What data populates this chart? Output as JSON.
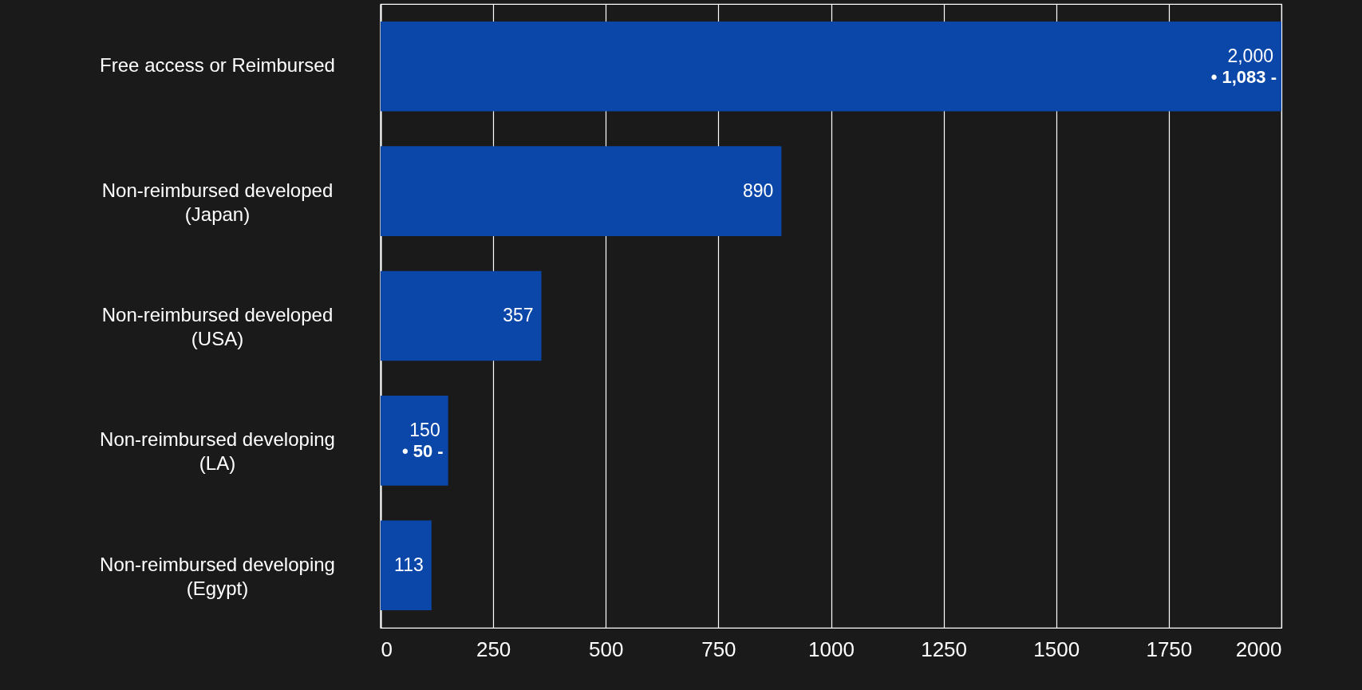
{
  "chart_data": {
    "type": "bar",
    "orientation": "horizontal",
    "categories": [
      "Free access or Reimbursed",
      "Non-reimbursed developed\n(Japan)",
      "Non-reimbursed developed\n(USA)",
      "Non-reimbursed developing\n(LA)",
      "Non-reimbursed developing\n(Egypt)"
    ],
    "values": [
      2000,
      890,
      357,
      150,
      113
    ],
    "value_labels": [
      "2,000",
      "890",
      "357",
      "150",
      "113"
    ],
    "color": "#0a47a9",
    "xlim": [
      0,
      2000
    ],
    "xticks": [
      0,
      250,
      500,
      750,
      1000,
      1250,
      1500,
      1750,
      2000
    ],
    "grid": "x",
    "annotations": [
      {
        "text": "• 1,083 -",
        "x": 2000,
        "y": "Free access or Reimbursed"
      },
      {
        "text": "• 50 -",
        "x": 150,
        "y": "Non-reimbursed developing\n(LA)"
      }
    ]
  }
}
